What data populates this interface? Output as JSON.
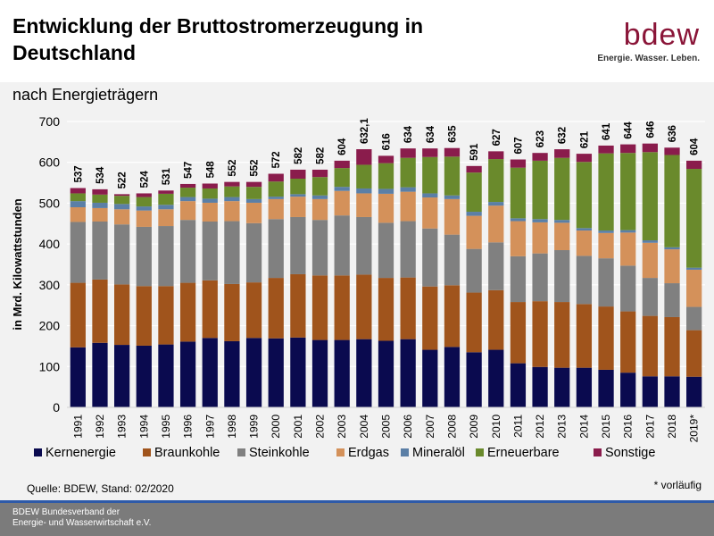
{
  "header": {
    "title": "Entwicklung der Bruttostromerzeugung in Deutschland",
    "logo_text": "bdew",
    "logo_tagline": "Energie. Wasser. Leben."
  },
  "subtitle": "nach Energieträgern",
  "source": "Quelle: BDEW, Stand: 02/2020",
  "footnote": "* vorläufig",
  "footer": {
    "line1": "BDEW Bundesverband der",
    "line2": "Energie- und Wasserwirtschaft e.V."
  },
  "colors": {
    "Kernenergie": "#0a0a4f",
    "Braunkohle": "#a0541c",
    "Steinkohle": "#808080",
    "Erdgas": "#d4915a",
    "Mineralöl": "#5b7fa6",
    "Erneuerbare": "#6a8a2c",
    "Sonstige": "#8a1c4c",
    "brand": "#8a1538",
    "footer_bg": "#7b7b7b",
    "footer_line": "#2e5aa8"
  },
  "chart_data": {
    "type": "bar",
    "stacked": true,
    "title": "Entwicklung der Bruttostromerzeugung in Deutschland",
    "ylabel": "in Mrd. Kilowattstunden",
    "xlabel": "",
    "ylim": [
      0,
      700
    ],
    "yticks": [
      0,
      100,
      200,
      300,
      400,
      500,
      600,
      700
    ],
    "grid": true,
    "legend_position": "bottom",
    "categories": [
      "1991",
      "1992",
      "1993",
      "1994",
      "1995",
      "1996",
      "1997",
      "1998",
      "1999",
      "2000",
      "2001",
      "2002",
      "2003",
      "2004",
      "2005",
      "2006",
      "2007",
      "2008",
      "2009",
      "2010",
      "2011",
      "2012",
      "2013",
      "2014",
      "2015",
      "2016",
      "2017",
      "2018",
      "2019*"
    ],
    "total_labels": [
      "537",
      "534",
      "522",
      "524",
      "531",
      "547",
      "548",
      "552",
      "552",
      "572",
      "582",
      "582",
      "604",
      "632,1",
      "616",
      "634",
      "634",
      "635",
      "591",
      "627",
      "607",
      "623",
      "632",
      "621",
      "641",
      "644",
      "646",
      "636",
      "604"
    ],
    "totals": [
      537,
      534,
      522,
      524,
      531,
      547,
      548,
      552,
      552,
      572,
      582,
      582,
      604,
      632.1,
      616,
      634,
      634,
      635,
      591,
      627,
      607,
      623,
      632,
      621,
      641,
      644,
      646,
      636,
      604
    ],
    "series": [
      {
        "name": "Kernenergie",
        "values": [
          147,
          158,
          153,
          151,
          154,
          161,
          170,
          162,
          170,
          169,
          171,
          165,
          165,
          167,
          163,
          167,
          141,
          148,
          135,
          141,
          108,
          99,
          97,
          97,
          92,
          85,
          76,
          76,
          75
        ]
      },
      {
        "name": "Braunkohle",
        "values": [
          158,
          155,
          148,
          146,
          143,
          144,
          141,
          140,
          136,
          148,
          155,
          158,
          158,
          158,
          154,
          151,
          155,
          151,
          146,
          146,
          150,
          161,
          161,
          156,
          155,
          150,
          148,
          145,
          114
        ]
      },
      {
        "name": "Steinkohle",
        "values": [
          149,
          142,
          147,
          145,
          147,
          154,
          144,
          154,
          145,
          144,
          140,
          136,
          147,
          141,
          135,
          138,
          142,
          124,
          107,
          117,
          112,
          117,
          127,
          118,
          118,
          112,
          93,
          83,
          57
        ]
      },
      {
        "name": "Erdgas",
        "values": [
          36,
          33,
          37,
          40,
          41,
          46,
          46,
          49,
          50,
          49,
          50,
          51,
          60,
          58,
          71,
          72,
          76,
          87,
          81,
          90,
          86,
          76,
          67,
          62,
          62,
          81,
          86,
          83,
          91
        ]
      },
      {
        "name": "Mineralöl",
        "values": [
          15,
          13,
          13,
          10,
          11,
          10,
          10,
          10,
          9,
          6,
          6,
          9,
          10,
          12,
          12,
          11,
          10,
          9,
          10,
          9,
          7,
          8,
          7,
          6,
          6,
          6,
          6,
          5,
          5
        ]
      },
      {
        "name": "Erneuerbare",
        "values": [
          19,
          20,
          20,
          23,
          27,
          23,
          25,
          26,
          30,
          37,
          38,
          45,
          46,
          58,
          63,
          72,
          89,
          95,
          96,
          105,
          124,
          143,
          152,
          162,
          189,
          189,
          216,
          226,
          242
        ]
      },
      {
        "name": "Sonstige",
        "values": [
          13,
          13,
          4,
          9,
          8,
          9,
          12,
          11,
          12,
          19,
          22,
          18,
          18,
          38.1,
          18,
          23,
          21,
          21,
          16,
          19,
          20,
          19,
          21,
          20,
          19,
          21,
          21,
          18,
          20
        ]
      }
    ]
  }
}
